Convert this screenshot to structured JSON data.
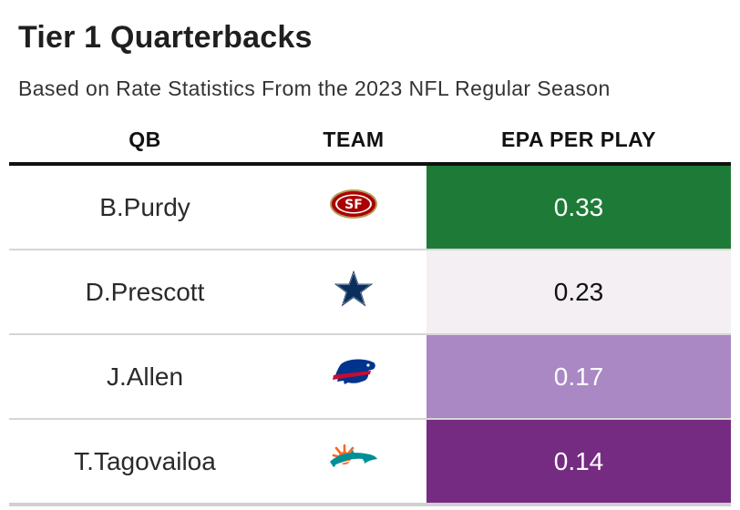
{
  "header": {
    "title": "Tier 1 Quarterbacks",
    "subtitle": "Based on Rate Statistics From the 2023 NFL Regular Season"
  },
  "columns": [
    "QB",
    "TEAM",
    "EPA PER PLAY"
  ],
  "rows": [
    {
      "qb": "B.Purdy",
      "team_logo": "49ers-logo-icon",
      "epa": "0.33",
      "bg": "#1e7b37",
      "fg": "#ffffff"
    },
    {
      "qb": "D.Prescott",
      "team_logo": "cowboys-star-logo-icon",
      "epa": "0.23",
      "bg": "#f3eff3",
      "fg": "#111111"
    },
    {
      "qb": "J.Allen",
      "team_logo": "bills-logo-icon",
      "epa": "0.17",
      "bg": "#a988c3",
      "fg": "#ffffff"
    },
    {
      "qb": "T.Tagovailoa",
      "team_logo": "dolphins-logo-icon",
      "epa": "0.14",
      "bg": "#762b82",
      "fg": "#ffffff"
    }
  ]
}
